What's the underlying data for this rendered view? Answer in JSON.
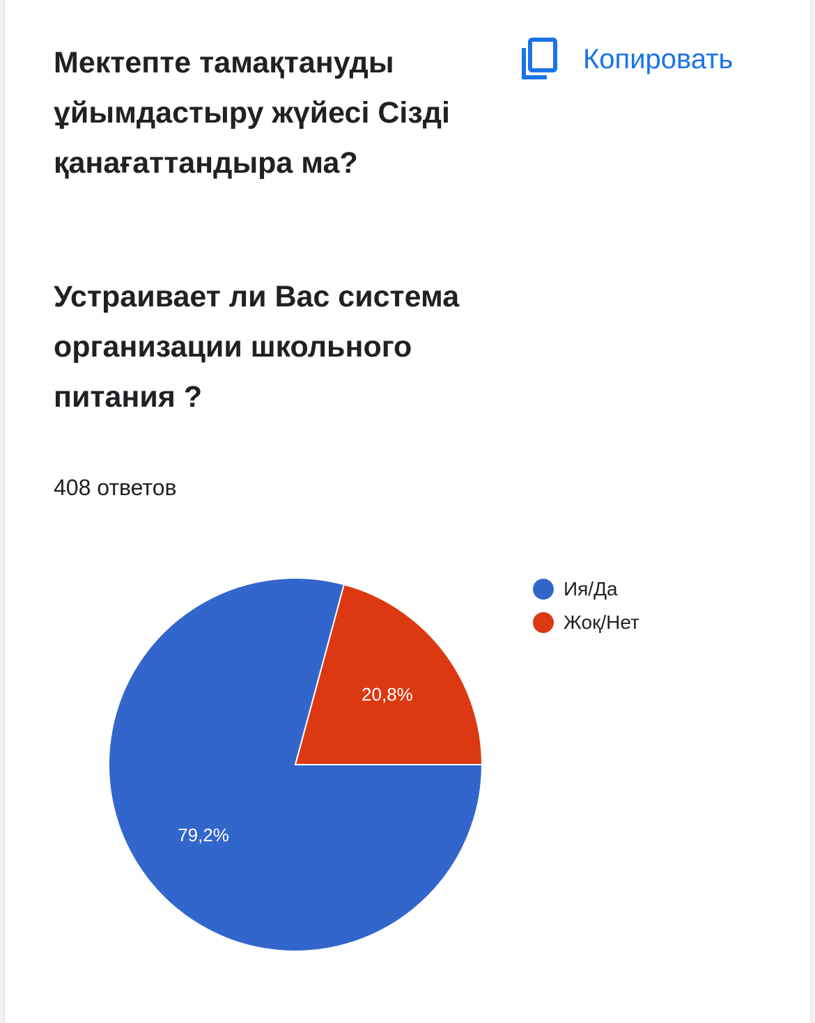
{
  "card": {
    "title_kz": "Мектепте тамақтануды ұйымдастыру жүйесі Сізді қанағаттандыра ма?",
    "title_ru": "Устраивает ли Вас система организации школьного питания ?",
    "copy_label": "Копировать",
    "copy_icon": "copy-icon",
    "response_count": "408 ответов",
    "accent_color": "#1a73e8"
  },
  "chart_data": {
    "type": "pie",
    "total_responses": 408,
    "legend_position": "right",
    "slices": [
      {
        "name": "Ия/Да",
        "value": 79.2,
        "label": "79,2%",
        "color": "#3366cc"
      },
      {
        "name": "Жоқ/Нет",
        "value": 20.8,
        "label": "20,8%",
        "color": "#dc3912"
      }
    ]
  }
}
